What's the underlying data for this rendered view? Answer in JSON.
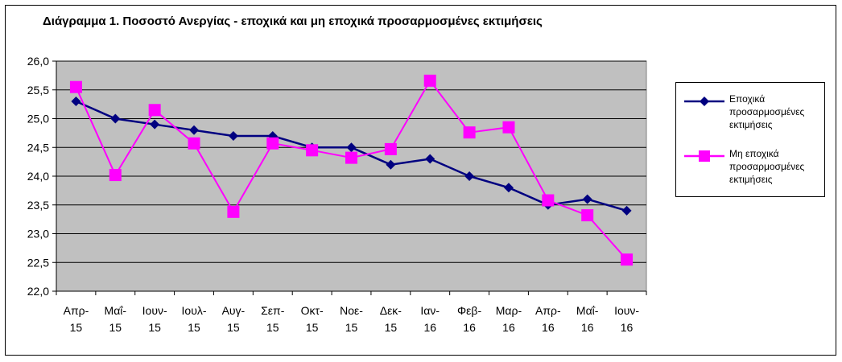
{
  "chart_data": {
    "type": "line",
    "title": "Διάγραμμα 1. Ποσοστό Ανεργίας - εποχικά και μη εποχικά προσαρμοσμένες εκτιμήσεις",
    "categories": [
      [
        "Απρ-",
        "15"
      ],
      [
        "Μαΐ-",
        "15"
      ],
      [
        "Ιουν-",
        "15"
      ],
      [
        "Ιουλ-",
        "15"
      ],
      [
        "Αυγ-",
        "15"
      ],
      [
        "Σεπ-",
        "15"
      ],
      [
        "Οκτ-",
        "15"
      ],
      [
        "Νοε-",
        "15"
      ],
      [
        "Δεκ-",
        "15"
      ],
      [
        "Ιαν-",
        "16"
      ],
      [
        "Φεβ-",
        "16"
      ],
      [
        "Μαρ-",
        "16"
      ],
      [
        "Απρ-",
        "16"
      ],
      [
        "Μαΐ-",
        "16"
      ],
      [
        "Ιουν-",
        "16"
      ]
    ],
    "ylim": [
      22.0,
      26.0
    ],
    "ytick_labels": [
      "22,0",
      "22,5",
      "23,0",
      "23,5",
      "24,0",
      "24,5",
      "25,0",
      "25,5",
      "26,0"
    ],
    "ytick_values": [
      22.0,
      22.5,
      23.0,
      23.5,
      24.0,
      24.5,
      25.0,
      25.5,
      26.0
    ],
    "grid": true,
    "legend_position": "right",
    "plot_background": "#c0c0c0",
    "series": [
      {
        "name": "Εποχικά προσαρμοσμένες εκτιμήσεις",
        "legend_lines": [
          "Εποχικά",
          "προσαρμοσμένες",
          "εκτιμήσεις"
        ],
        "color": "#000080",
        "marker": "diamond",
        "values": [
          25.3,
          25.0,
          24.9,
          24.8,
          24.7,
          24.7,
          24.5,
          24.5,
          24.2,
          24.3,
          24.0,
          23.8,
          23.5,
          23.6,
          23.4
        ]
      },
      {
        "name": "Μη εποχικά προσαρμοσμένες εκτιμήσεις",
        "legend_lines": [
          "Μη εποχικά",
          "προσαρμοσμένες",
          "εκτιμήσεις"
        ],
        "color": "#ff00ff",
        "marker": "square",
        "values": [
          25.55,
          24.02,
          25.15,
          24.57,
          23.38,
          24.57,
          24.45,
          24.32,
          24.47,
          25.66,
          24.76,
          24.85,
          23.58,
          23.32,
          22.55
        ]
      }
    ]
  }
}
